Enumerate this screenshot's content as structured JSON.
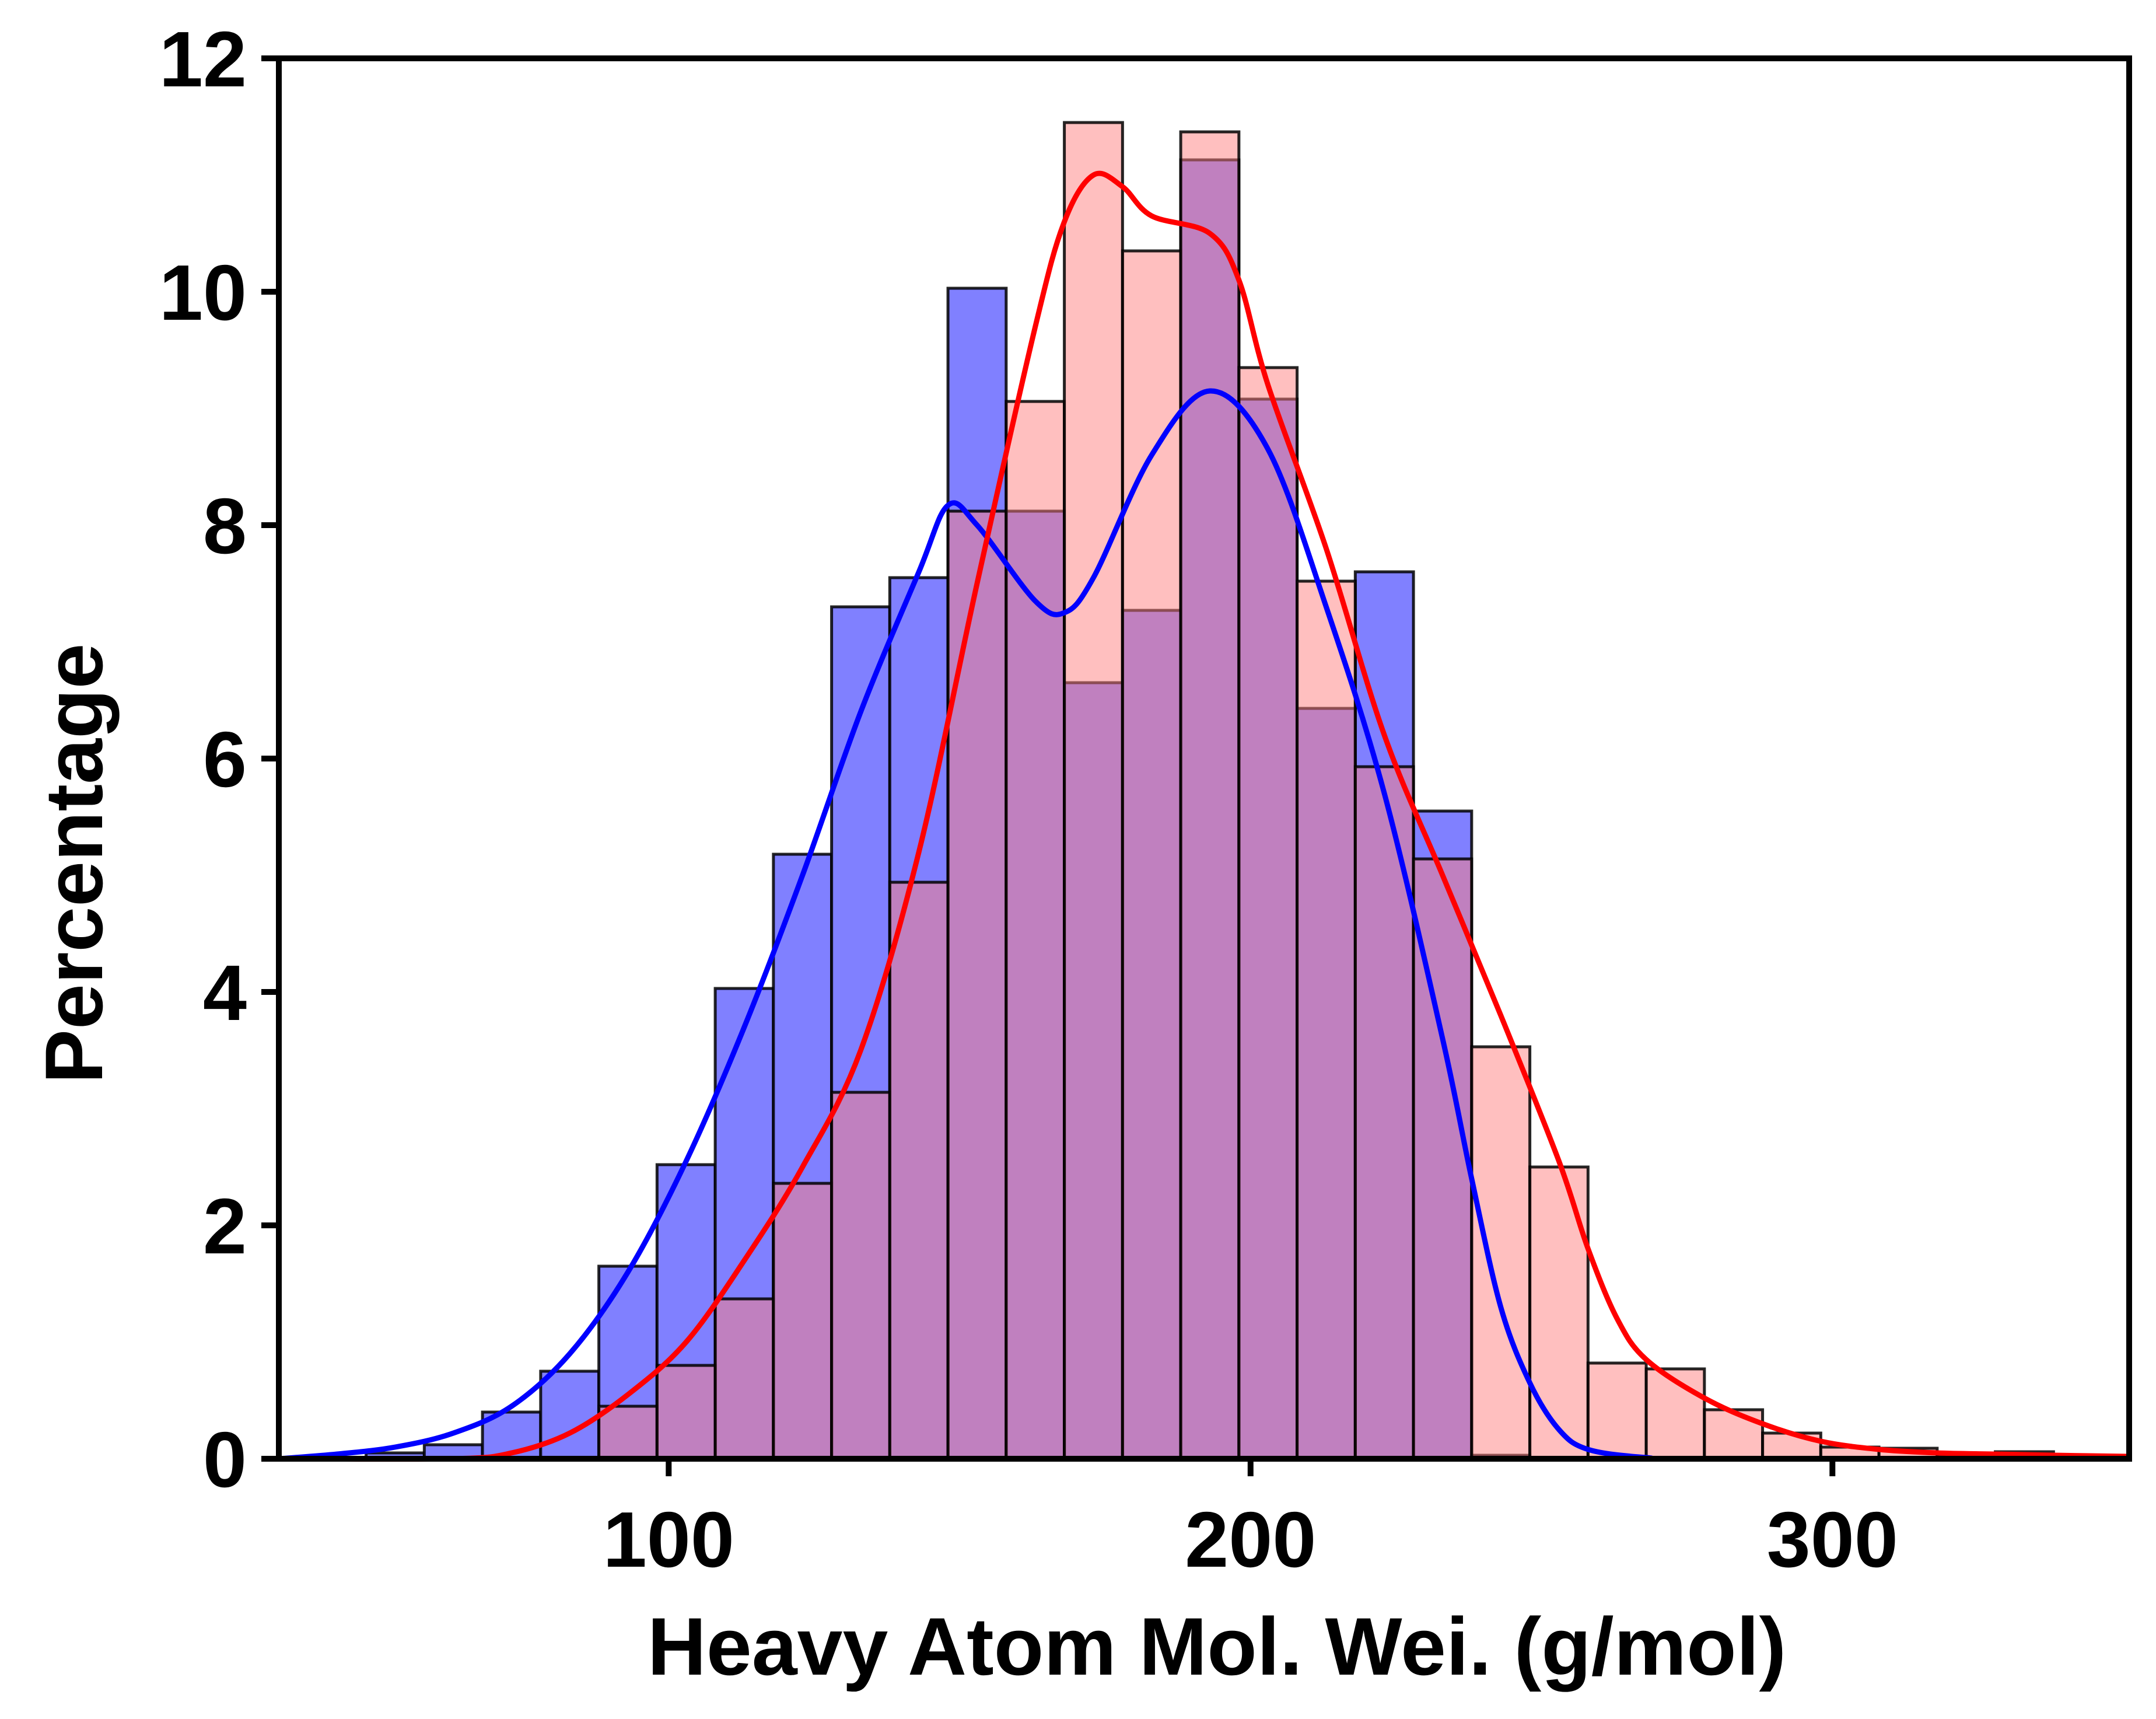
{
  "chart_data": {
    "type": "bar",
    "subtype": "overlapping-histogram-with-kde",
    "title": "",
    "xlabel": "Heavy Atom Mol. Wei. (g/mol)",
    "ylabel": "Percentage",
    "xlim": [
      33,
      351
    ],
    "ylim": [
      0,
      12
    ],
    "xticks": [
      100,
      200,
      300
    ],
    "yticks": [
      0,
      2,
      4,
      6,
      8,
      10,
      12
    ],
    "grid": false,
    "legend": "none",
    "bin_edges": [
      38,
      48,
      58,
      68,
      78,
      88,
      98,
      108,
      118,
      128,
      138,
      148,
      158,
      168,
      178,
      188,
      198,
      208,
      218,
      228,
      238,
      248,
      258,
      268,
      278,
      288,
      298,
      308,
      318,
      328,
      338
    ],
    "series": [
      {
        "color": "#0000ff",
        "fill": "#8080ff",
        "values": [
          0,
          0.05,
          0.12,
          0.4,
          0.75,
          1.65,
          2.52,
          4.03,
          5.18,
          7.3,
          7.55,
          10.03,
          8.12,
          6.65,
          7.27,
          11.13,
          9.08,
          6.43,
          7.6,
          5.55,
          0.03,
          0,
          0,
          0,
          0,
          0,
          0,
          0,
          0,
          0
        ],
        "kde": [
          [
            33,
            0.0
          ],
          [
            43,
            0.04
          ],
          [
            53,
            0.1
          ],
          [
            63,
            0.22
          ],
          [
            73,
            0.45
          ],
          [
            83,
            0.9
          ],
          [
            93,
            1.6
          ],
          [
            103,
            2.55
          ],
          [
            113,
            3.7
          ],
          [
            123,
            5.0
          ],
          [
            133,
            6.4
          ],
          [
            143,
            7.6
          ],
          [
            148,
            8.17
          ],
          [
            153,
            8.0
          ],
          [
            163,
            7.35
          ],
          [
            168,
            7.25
          ],
          [
            173,
            7.55
          ],
          [
            183,
            8.6
          ],
          [
            193,
            9.15
          ],
          [
            203,
            8.65
          ],
          [
            213,
            7.3
          ],
          [
            223,
            5.7
          ],
          [
            233,
            3.6
          ],
          [
            238,
            2.4
          ],
          [
            243,
            1.3
          ],
          [
            248,
            0.65
          ],
          [
            253,
            0.25
          ],
          [
            258,
            0.08
          ],
          [
            268,
            0.01
          ],
          [
            278,
            0.0
          ],
          [
            351,
            0.0
          ]
        ]
      },
      {
        "color": "#ff0000",
        "fill": "#ff8080",
        "values": [
          0,
          0,
          0,
          0,
          0,
          0.45,
          0.8,
          1.37,
          2.36,
          3.14,
          4.94,
          8.12,
          9.06,
          11.45,
          10.35,
          11.37,
          9.35,
          7.52,
          5.93,
          5.14,
          3.53,
          2.5,
          0.82,
          0.77,
          0.42,
          0.22,
          0.1,
          0.09,
          0.02,
          0.06
        ],
        "kde": [
          [
            33,
            0.0
          ],
          [
            63,
            0.0
          ],
          [
            73,
            0.05
          ],
          [
            83,
            0.22
          ],
          [
            93,
            0.55
          ],
          [
            103,
            1.0
          ],
          [
            113,
            1.7
          ],
          [
            123,
            2.5
          ],
          [
            133,
            3.5
          ],
          [
            143,
            5.2
          ],
          [
            153,
            7.5
          ],
          [
            163,
            9.7
          ],
          [
            168,
            10.6
          ],
          [
            173,
            11.0
          ],
          [
            178,
            10.9
          ],
          [
            183,
            10.65
          ],
          [
            193,
            10.5
          ],
          [
            198,
            10.1
          ],
          [
            203,
            9.2
          ],
          [
            213,
            7.8
          ],
          [
            223,
            6.2
          ],
          [
            233,
            5.0
          ],
          [
            243,
            3.8
          ],
          [
            253,
            2.55
          ],
          [
            258,
            1.8
          ],
          [
            263,
            1.2
          ],
          [
            268,
            0.85
          ],
          [
            278,
            0.52
          ],
          [
            288,
            0.3
          ],
          [
            298,
            0.15
          ],
          [
            308,
            0.08
          ],
          [
            318,
            0.05
          ],
          [
            328,
            0.04
          ],
          [
            338,
            0.03
          ],
          [
            351,
            0.02
          ]
        ]
      }
    ]
  }
}
